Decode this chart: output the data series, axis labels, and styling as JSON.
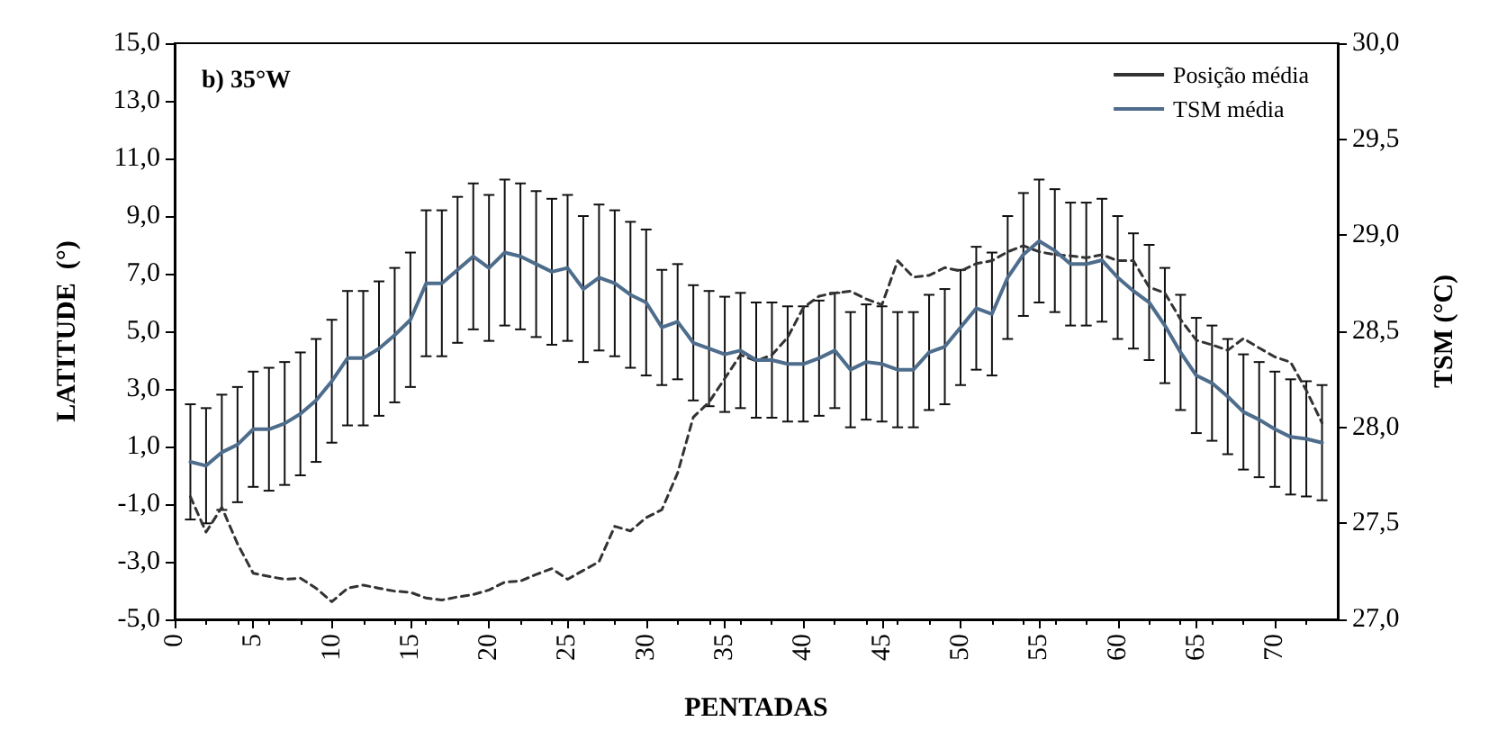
{
  "chart_data": {
    "type": "line",
    "xlabel": "PENTADAS",
    "ylabel": "LATITUDE  (°)",
    "y2label": "TSM (°C)",
    "annotations": [
      "b) 35°W"
    ],
    "xlim": [
      0,
      74
    ],
    "xticks": [
      0,
      5,
      10,
      15,
      20,
      25,
      30,
      35,
      40,
      45,
      50,
      55,
      60,
      65,
      70
    ],
    "ylim": [
      -5,
      15
    ],
    "yticks": [
      {
        "value": -5,
        "label": "-5,0"
      },
      {
        "value": -3,
        "label": "-3,0"
      },
      {
        "value": -1,
        "label": "-1,0"
      },
      {
        "value": 1,
        "label": "1,0"
      },
      {
        "value": 3,
        "label": "3,0"
      },
      {
        "value": 5,
        "label": "5,0"
      },
      {
        "value": 7,
        "label": "7,0"
      },
      {
        "value": 9,
        "label": "9,0"
      },
      {
        "value": 11,
        "label": "11,0"
      },
      {
        "value": 13,
        "label": "13,0"
      },
      {
        "value": 15,
        "label": "15,0"
      }
    ],
    "y2lim": [
      27,
      30
    ],
    "y2ticks": [
      {
        "value": 27,
        "label": "27,0"
      },
      {
        "value": 27.5,
        "label": "27,5"
      },
      {
        "value": 28,
        "label": "28,0"
      },
      {
        "value": 28.5,
        "label": "28,5"
      },
      {
        "value": 29,
        "label": "29,0"
      },
      {
        "value": 29.5,
        "label": "29,5"
      },
      {
        "value": 30,
        "label": "30,0"
      }
    ],
    "x": [
      1,
      2,
      3,
      4,
      5,
      6,
      7,
      8,
      9,
      10,
      11,
      12,
      13,
      14,
      15,
      16,
      17,
      18,
      19,
      20,
      21,
      22,
      23,
      24,
      25,
      26,
      27,
      28,
      29,
      30,
      31,
      32,
      33,
      34,
      35,
      36,
      37,
      38,
      39,
      40,
      41,
      42,
      43,
      44,
      45,
      46,
      47,
      48,
      49,
      50,
      51,
      52,
      53,
      54,
      55,
      56,
      57,
      58,
      59,
      60,
      61,
      62,
      63,
      64,
      65,
      66,
      67,
      68,
      69,
      70,
      71,
      72,
      73
    ],
    "grid": false,
    "legend": "top right",
    "marker": "none",
    "series": [
      {
        "name": "Posição média",
        "color": "#333333",
        "line_style": "dashed",
        "values": [
          -0.74,
          -1.97,
          -1.11,
          -2.38,
          -3.4,
          -3.51,
          -3.61,
          -3.57,
          -3.92,
          -4.39,
          -3.92,
          -3.81,
          -3.92,
          -4.02,
          -4.06,
          -4.26,
          -4.33,
          -4.22,
          -4.14,
          -3.98,
          -3.71,
          -3.67,
          -3.44,
          -3.24,
          -3.61,
          -3.3,
          -3.0,
          -1.77,
          -1.93,
          -1.47,
          -1.19,
          0.08,
          2.02,
          2.54,
          3.36,
          4.18,
          3.97,
          4.18,
          4.79,
          5.82,
          6.22,
          6.33,
          6.39,
          6.12,
          5.92,
          7.45,
          6.88,
          6.94,
          7.21,
          7.09,
          7.35,
          7.45,
          7.76,
          7.97,
          7.76,
          7.66,
          7.62,
          7.55,
          7.66,
          7.45,
          7.45,
          6.53,
          6.33,
          5.41,
          4.69,
          4.53,
          4.34,
          4.75,
          4.42,
          4.11,
          3.93,
          2.95,
          1.82
        ]
      },
      {
        "name": "TSM média",
        "color": "#4e6d8c",
        "line_style": "solid",
        "axis": "y2",
        "values": [
          27.82,
          27.8,
          27.87,
          27.91,
          27.99,
          27.99,
          28.02,
          28.07,
          28.14,
          28.24,
          28.36,
          28.36,
          28.41,
          28.48,
          28.56,
          28.75,
          28.75,
          28.82,
          28.89,
          28.83,
          28.91,
          28.89,
          28.85,
          28.81,
          28.83,
          28.72,
          28.78,
          28.75,
          28.69,
          28.65,
          28.52,
          28.55,
          28.44,
          28.41,
          28.38,
          28.4,
          28.35,
          28.35,
          28.33,
          28.33,
          28.36,
          28.4,
          28.3,
          28.34,
          28.33,
          28.3,
          28.3,
          28.39,
          28.42,
          28.52,
          28.62,
          28.59,
          28.78,
          28.9,
          28.97,
          28.92,
          28.85,
          28.85,
          28.87,
          28.78,
          28.71,
          28.65,
          28.53,
          28.39,
          28.27,
          28.23,
          28.16,
          28.08,
          28.04,
          27.99,
          27.95,
          27.94,
          27.92
        ],
        "errors": [
          0.3,
          0.3,
          0.3,
          0.3,
          0.3,
          0.32,
          0.32,
          0.32,
          0.32,
          0.32,
          0.35,
          0.35,
          0.35,
          0.35,
          0.35,
          0.38,
          0.38,
          0.38,
          0.38,
          0.38,
          0.38,
          0.38,
          0.38,
          0.38,
          0.38,
          0.38,
          0.38,
          0.38,
          0.38,
          0.38,
          0.3,
          0.3,
          0.3,
          0.3,
          0.3,
          0.3,
          0.3,
          0.3,
          0.3,
          0.3,
          0.3,
          0.3,
          0.3,
          0.3,
          0.3,
          0.3,
          0.3,
          0.3,
          0.3,
          0.3,
          0.32,
          0.32,
          0.32,
          0.32,
          0.32,
          0.32,
          0.32,
          0.32,
          0.32,
          0.32,
          0.3,
          0.3,
          0.3,
          0.3,
          0.3,
          0.3,
          0.3,
          0.3,
          0.3,
          0.3,
          0.3,
          0.3,
          0.3
        ]
      }
    ]
  }
}
